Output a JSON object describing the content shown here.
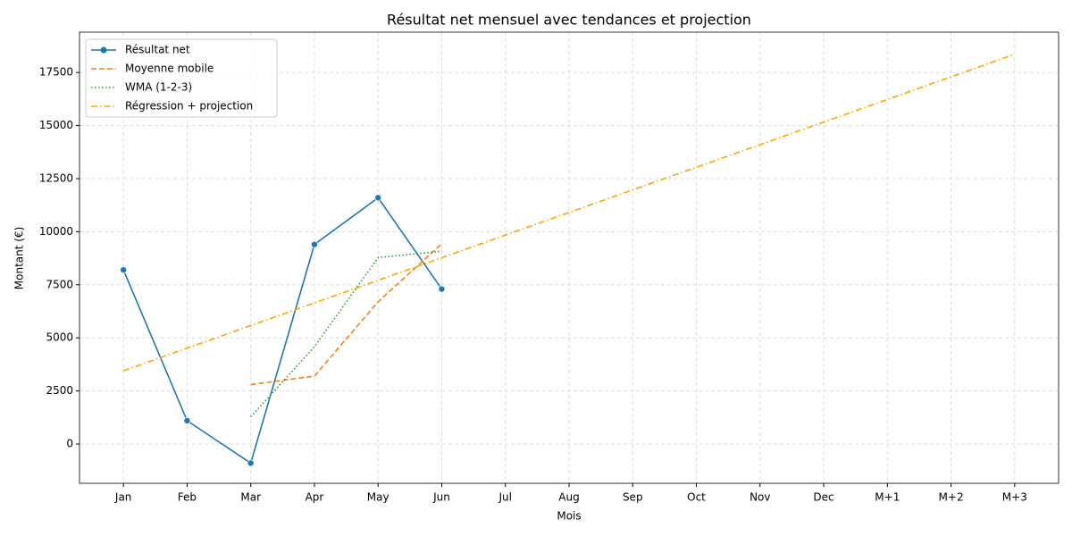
{
  "chart_data": {
    "type": "line",
    "title": "Résultat net mensuel avec tendances et projection",
    "xlabel": "Mois",
    "ylabel": "Montant (€)",
    "categories": [
      "Jan",
      "Feb",
      "Mar",
      "Apr",
      "May",
      "Jun",
      "Jul",
      "Aug",
      "Sep",
      "Oct",
      "Nov",
      "Dec",
      "M+1",
      "M+2",
      "M+3"
    ],
    "series": [
      {
        "name": "Résultat net",
        "color": "#1f77b4",
        "linestyle": "solid",
        "marker": "o",
        "values": [
          8200,
          1100,
          -900,
          9400,
          11600,
          7300,
          null,
          null,
          null,
          null,
          null,
          null,
          null,
          null,
          null
        ]
      },
      {
        "name": "Moyenne mobile",
        "color": "#ff7f0e",
        "linestyle": "dashed",
        "values": [
          null,
          null,
          2800,
          3200,
          6700,
          9433,
          null,
          null,
          null,
          null,
          null,
          null,
          null,
          null,
          null
        ]
      },
      {
        "name": "WMA (1-2-3)",
        "color": "#2ca02c",
        "linestyle": "dotted",
        "values": [
          null,
          null,
          1283,
          4583,
          8783,
          9083,
          null,
          null,
          null,
          null,
          null,
          null,
          null,
          null,
          null
        ]
      },
      {
        "name": "Régression + projection",
        "color": "#ffa500",
        "linestyle": "dashdot",
        "values": [
          3450,
          4515,
          5580,
          6645,
          7710,
          8775,
          9840,
          10905,
          11970,
          13035,
          14100,
          15165,
          16230,
          17295,
          18360
        ]
      }
    ],
    "ylim": [
      -1850,
      19400
    ],
    "yticks": [
      0,
      2500,
      5000,
      7500,
      10000,
      12500,
      15000,
      17500
    ],
    "grid": true,
    "legend": "upper left"
  }
}
